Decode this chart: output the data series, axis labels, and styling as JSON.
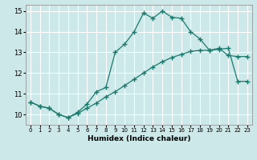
{
  "xlabel": "Humidex (Indice chaleur)",
  "xlim": [
    -0.5,
    23.5
  ],
  "ylim": [
    9.5,
    15.3
  ],
  "xticks": [
    0,
    1,
    2,
    3,
    4,
    5,
    6,
    7,
    8,
    9,
    10,
    11,
    12,
    13,
    14,
    15,
    16,
    17,
    18,
    19,
    20,
    21,
    22,
    23
  ],
  "yticks": [
    10,
    11,
    12,
    13,
    14,
    15
  ],
  "bg_color": "#cce8e8",
  "line_color": "#1a7a6e",
  "line1_x": [
    0,
    1,
    2,
    3,
    4,
    5,
    6,
    7,
    8,
    9,
    10,
    11,
    12,
    13,
    14,
    15,
    16,
    17,
    18,
    19,
    20,
    21,
    22,
    23
  ],
  "line1_y": [
    10.6,
    10.4,
    10.3,
    10.0,
    9.85,
    10.1,
    10.5,
    11.1,
    11.3,
    13.0,
    13.4,
    14.0,
    14.9,
    14.65,
    15.0,
    14.7,
    14.65,
    14.0,
    13.65,
    13.1,
    13.2,
    12.85,
    12.8,
    12.8
  ],
  "line2_x": [
    0,
    1,
    2,
    3,
    4,
    5,
    6,
    7,
    8,
    9,
    10,
    11,
    12,
    13,
    14,
    15,
    16,
    17,
    18,
    19,
    20,
    21,
    22,
    23
  ],
  "line2_y": [
    10.6,
    10.4,
    10.3,
    10.0,
    9.85,
    10.05,
    10.3,
    10.55,
    10.85,
    11.1,
    11.4,
    11.7,
    12.0,
    12.3,
    12.55,
    12.75,
    12.9,
    13.05,
    13.1,
    13.1,
    13.15,
    13.2,
    11.6,
    11.6
  ]
}
